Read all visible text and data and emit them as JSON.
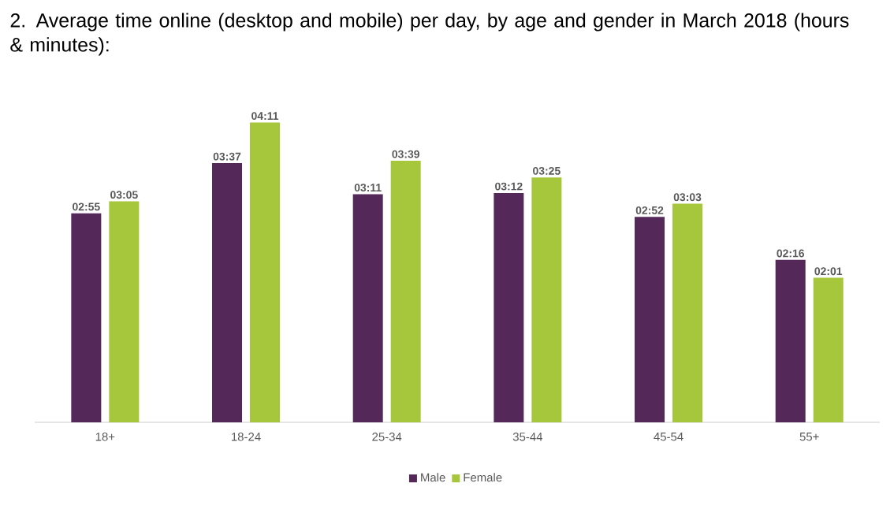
{
  "chart_data": {
    "type": "bar",
    "title": "2. Average time online (desktop and mobile) per day, by age and gender in March 2018 (hours & minutes):",
    "categories": [
      "18+",
      "18-24",
      "25-34",
      "35-44",
      "45-54",
      "55+"
    ],
    "series": [
      {
        "name": "Male",
        "color": "#55285a",
        "values": [
          175,
          217,
          191,
          192,
          172,
          136
        ],
        "value_labels": [
          "02:55",
          "03:37",
          "03:11",
          "03:12",
          "02:52",
          "02:16"
        ]
      },
      {
        "name": "Female",
        "color": "#a6c63c",
        "values": [
          185,
          251,
          219,
          205,
          183,
          121
        ],
        "value_labels": [
          "03:05",
          "04:11",
          "03:39",
          "03:25",
          "03:03",
          "02:01"
        ]
      }
    ],
    "legend": "bottom"
  }
}
